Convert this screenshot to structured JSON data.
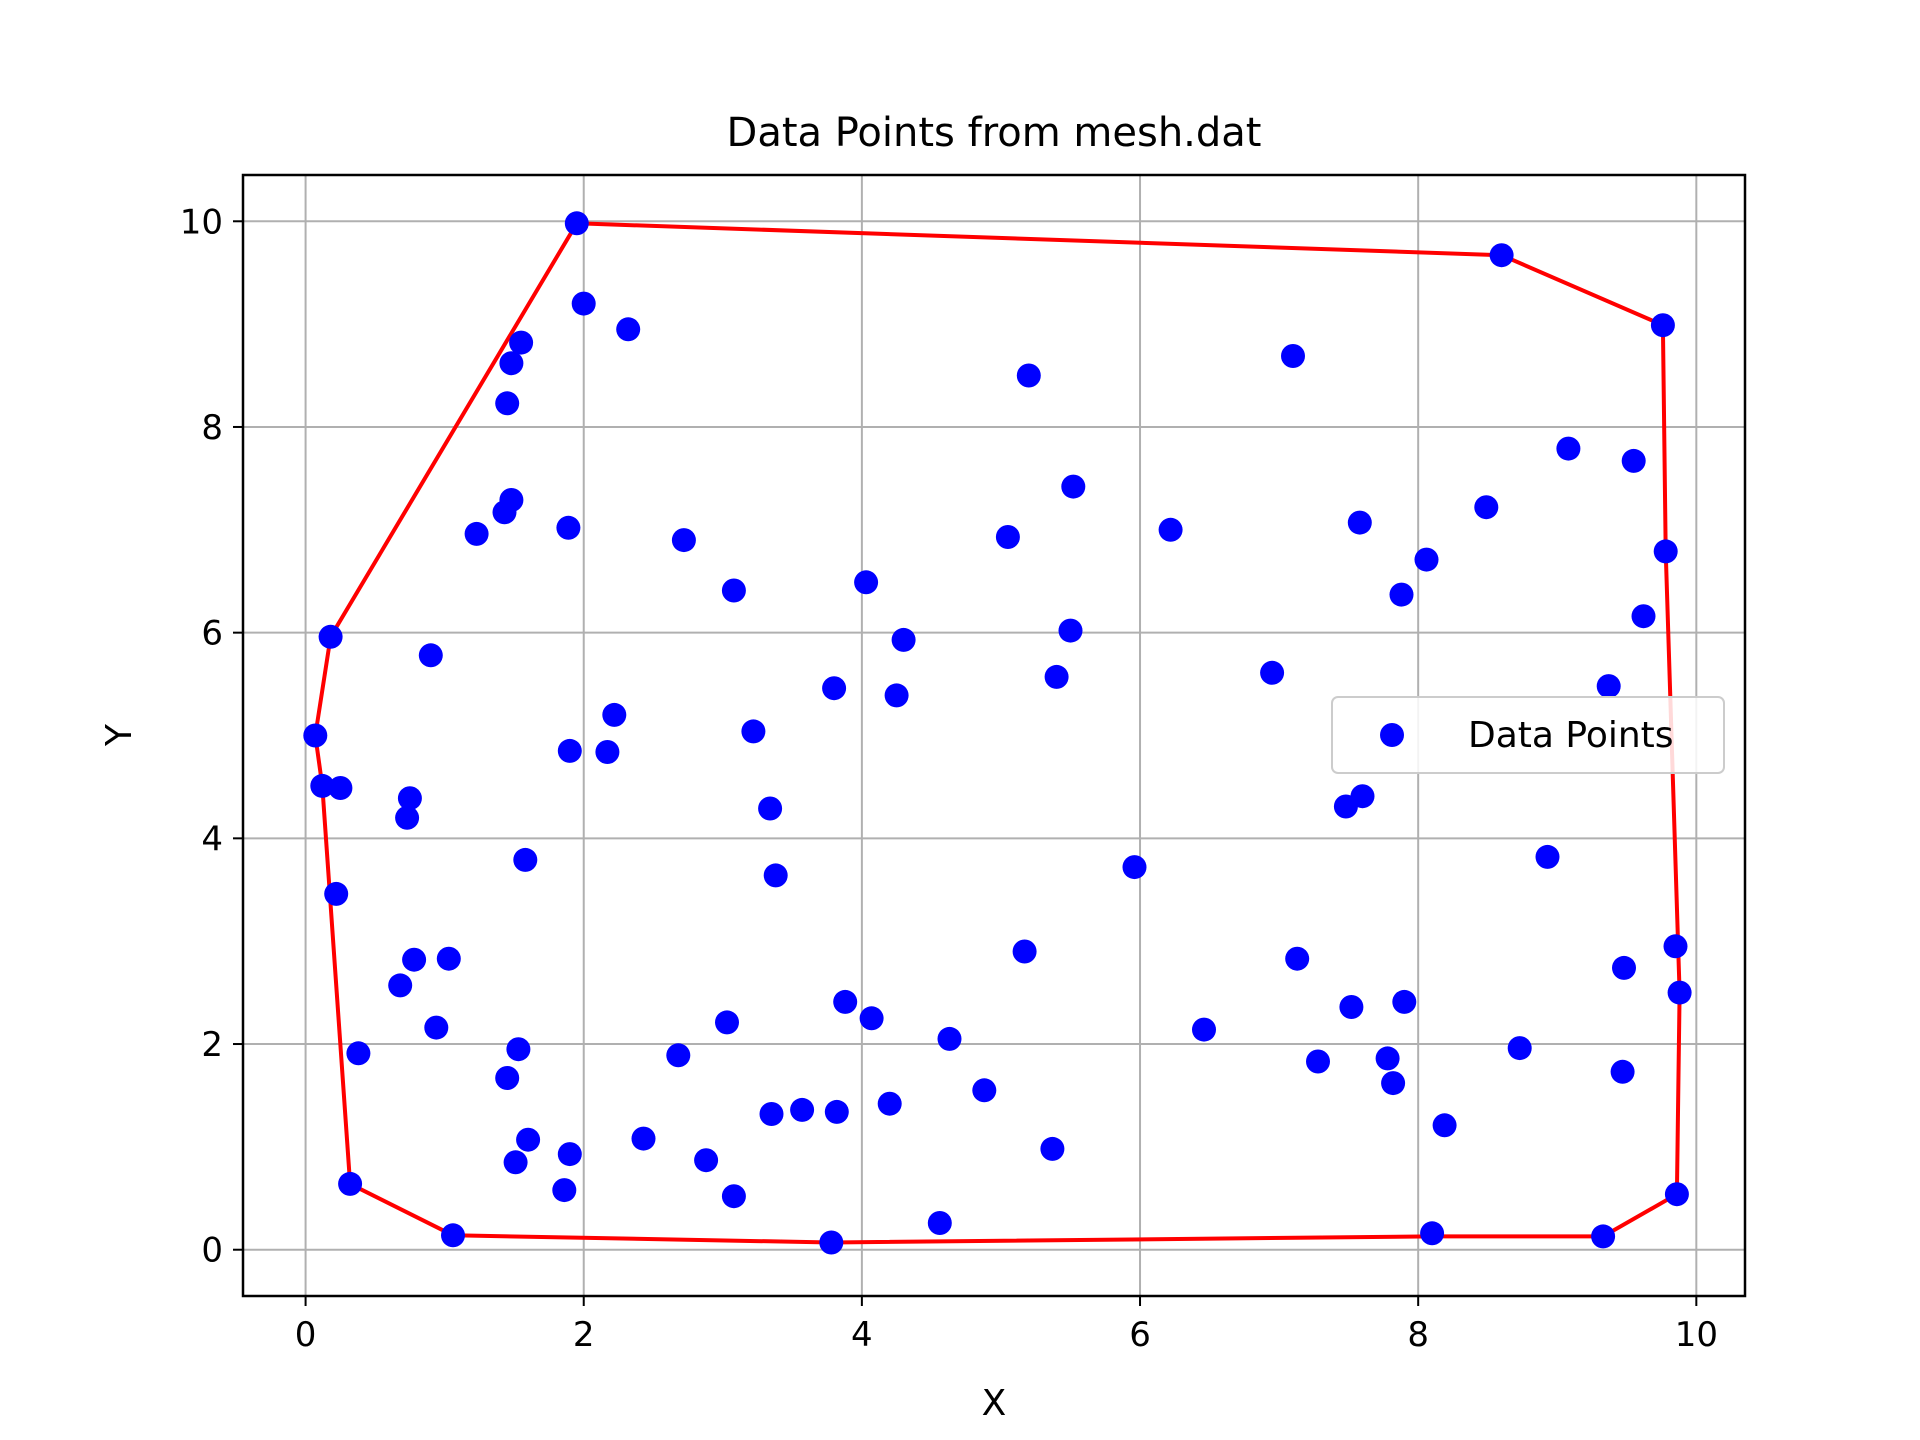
{
  "chart_data": {
    "type": "scatter",
    "title": "Data Points from mesh.dat",
    "xlabel": "X",
    "ylabel": "Y",
    "xlim": [
      -0.45,
      10.35
    ],
    "ylim": [
      -0.45,
      10.45
    ],
    "xticks": [
      0,
      2,
      4,
      6,
      8,
      10
    ],
    "yticks": [
      0,
      2,
      4,
      6,
      8,
      10
    ],
    "xtick_labels": [
      "0",
      "2",
      "4",
      "6",
      "8",
      "10"
    ],
    "ytick_labels": [
      "0",
      "2",
      "4",
      "6",
      "8",
      "10"
    ],
    "grid": true,
    "legend_position": "center-right",
    "series": [
      {
        "name": "Data Points",
        "kind": "scatter",
        "color": "#0000ff",
        "points": [
          [
            1.95,
            9.98
          ],
          [
            2.0,
            9.2
          ],
          [
            2.32,
            8.95
          ],
          [
            1.55,
            8.82
          ],
          [
            1.48,
            8.62
          ],
          [
            1.45,
            8.23
          ],
          [
            1.23,
            6.96
          ],
          [
            1.43,
            7.17
          ],
          [
            1.48,
            7.29
          ],
          [
            1.89,
            7.02
          ],
          [
            2.72,
            6.9
          ],
          [
            3.08,
            6.41
          ],
          [
            0.18,
            5.96
          ],
          [
            0.9,
            5.78
          ],
          [
            0.07,
            5.0
          ],
          [
            0.12,
            4.51
          ],
          [
            0.25,
            4.49
          ],
          [
            0.75,
            4.39
          ],
          [
            0.73,
            4.2
          ],
          [
            0.22,
            3.46
          ],
          [
            1.58,
            3.79
          ],
          [
            1.9,
            4.85
          ],
          [
            2.17,
            4.84
          ],
          [
            2.22,
            5.2
          ],
          [
            3.22,
            5.04
          ],
          [
            3.34,
            4.29
          ],
          [
            3.38,
            3.64
          ],
          [
            3.8,
            5.46
          ],
          [
            4.03,
            6.49
          ],
          [
            4.3,
            5.93
          ],
          [
            4.25,
            5.39
          ],
          [
            5.05,
            6.93
          ],
          [
            5.2,
            8.5
          ],
          [
            5.52,
            7.42
          ],
          [
            5.5,
            6.02
          ],
          [
            5.4,
            5.57
          ],
          [
            6.22,
            7.0
          ],
          [
            7.1,
            8.69
          ],
          [
            6.95,
            5.61
          ],
          [
            5.96,
            3.72
          ],
          [
            7.58,
            7.07
          ],
          [
            7.88,
            6.37
          ],
          [
            8.06,
            6.71
          ],
          [
            8.49,
            7.22
          ],
          [
            8.6,
            9.67
          ],
          [
            9.08,
            7.79
          ],
          [
            9.76,
            8.99
          ],
          [
            9.55,
            7.67
          ],
          [
            9.78,
            6.79
          ],
          [
            9.62,
            6.16
          ],
          [
            9.37,
            5.48
          ],
          [
            7.48,
            4.31
          ],
          [
            7.6,
            4.41
          ],
          [
            8.93,
            3.82
          ],
          [
            0.68,
            2.57
          ],
          [
            0.78,
            2.82
          ],
          [
            1.03,
            2.83
          ],
          [
            0.94,
            2.16
          ],
          [
            0.38,
            1.91
          ],
          [
            1.53,
            1.95
          ],
          [
            1.45,
            1.67
          ],
          [
            1.6,
            1.07
          ],
          [
            1.51,
            0.85
          ],
          [
            1.9,
            0.93
          ],
          [
            1.86,
            0.58
          ],
          [
            0.32,
            0.64
          ],
          [
            1.06,
            0.14
          ],
          [
            2.43,
            1.08
          ],
          [
            2.68,
            1.89
          ],
          [
            3.03,
            2.21
          ],
          [
            2.88,
            0.87
          ],
          [
            3.08,
            0.52
          ],
          [
            3.35,
            1.32
          ],
          [
            3.57,
            1.36
          ],
          [
            3.82,
            1.34
          ],
          [
            3.88,
            2.41
          ],
          [
            4.07,
            2.25
          ],
          [
            4.2,
            1.42
          ],
          [
            4.63,
            2.05
          ],
          [
            4.88,
            1.55
          ],
          [
            4.56,
            0.26
          ],
          [
            3.78,
            0.07
          ],
          [
            5.17,
            2.9
          ],
          [
            5.37,
            0.98
          ],
          [
            6.46,
            2.14
          ],
          [
            7.13,
            2.83
          ],
          [
            7.28,
            1.83
          ],
          [
            7.52,
            2.36
          ],
          [
            7.9,
            2.41
          ],
          [
            7.78,
            1.86
          ],
          [
            7.82,
            1.62
          ],
          [
            8.19,
            1.21
          ],
          [
            8.1,
            0.16
          ],
          [
            8.73,
            1.96
          ],
          [
            9.33,
            0.13
          ],
          [
            9.48,
            2.74
          ],
          [
            9.47,
            1.73
          ],
          [
            9.85,
            2.95
          ],
          [
            9.88,
            2.5
          ],
          [
            9.86,
            0.54
          ]
        ]
      },
      {
        "name": "",
        "kind": "line",
        "color": "#ff0000",
        "points": [
          [
            1.95,
            9.98
          ],
          [
            8.6,
            9.67
          ],
          [
            9.76,
            8.99
          ],
          [
            9.78,
            6.79
          ],
          [
            9.88,
            2.5
          ],
          [
            9.86,
            0.54
          ],
          [
            9.33,
            0.13
          ],
          [
            8.1,
            0.13
          ],
          [
            3.78,
            0.07
          ],
          [
            1.06,
            0.14
          ],
          [
            0.32,
            0.64
          ],
          [
            0.12,
            4.51
          ],
          [
            0.07,
            5.0
          ],
          [
            0.18,
            5.96
          ],
          [
            1.95,
            9.98
          ]
        ]
      }
    ]
  }
}
